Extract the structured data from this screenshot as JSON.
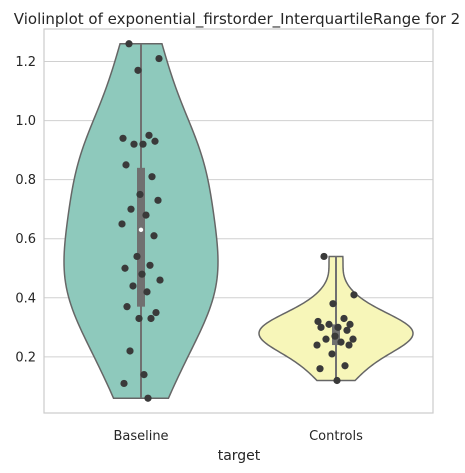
{
  "chart_data": {
    "type": "violin",
    "title": "Violinplot of exponential_firstorder_InterquartileRange for 2",
    "xlabel": "target",
    "ylabel": "",
    "categories": [
      "Baseline",
      "Controls"
    ],
    "ylim": [
      0.01,
      1.31
    ],
    "yticks": [
      0.2,
      0.4,
      0.6,
      0.8,
      1.0,
      1.2
    ],
    "ytick_labels": [
      "0.2",
      "0.4",
      "0.6",
      "0.8",
      "1.0",
      "1.2"
    ],
    "grid": true,
    "colors": {
      "Baseline": "#8ec9bc",
      "Controls": "#f7f6b9",
      "outline": "#666666",
      "points": "#3a3a3a",
      "box": "#707070",
      "grid": "#d0d0d0"
    },
    "groups": [
      {
        "name": "Baseline",
        "min": 0.06,
        "q1": 0.37,
        "median": 0.63,
        "q3": 0.84,
        "max": 1.26,
        "points": [
          1.26,
          1.21,
          1.17,
          0.95,
          0.94,
          0.93,
          0.92,
          0.92,
          0.85,
          0.81,
          0.75,
          0.73,
          0.7,
          0.68,
          0.65,
          0.61,
          0.54,
          0.51,
          0.5,
          0.48,
          0.46,
          0.44,
          0.42,
          0.37,
          0.35,
          0.33,
          0.33,
          0.22,
          0.14,
          0.11,
          0.06
        ]
      },
      {
        "name": "Controls",
        "min": 0.12,
        "q1": 0.24,
        "median": 0.27,
        "q3": 0.31,
        "max": 0.54,
        "points": [
          0.54,
          0.41,
          0.38,
          0.33,
          0.32,
          0.31,
          0.31,
          0.3,
          0.3,
          0.29,
          0.27,
          0.26,
          0.26,
          0.25,
          0.24,
          0.24,
          0.21,
          0.17,
          0.16,
          0.12
        ]
      }
    ]
  }
}
